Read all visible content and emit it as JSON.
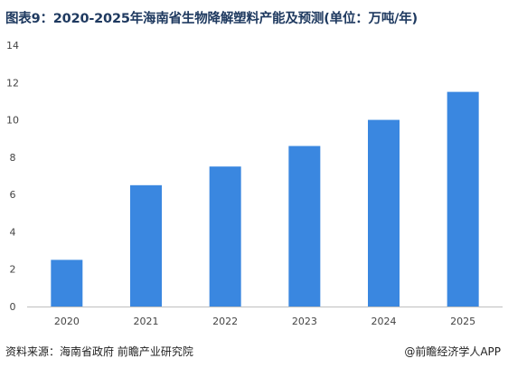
{
  "title": "图表9：2020-2025年海南省生物降解塑料产能及预测(单位：万吨/年)",
  "source": "资料来源：海南省政府 前瞻产业研究院",
  "credit": "@前瞻经济学人APP",
  "chart_data": {
    "type": "bar",
    "categories": [
      "2020",
      "2021",
      "2022",
      "2023",
      "2024",
      "2025"
    ],
    "values": [
      2.5,
      6.5,
      7.5,
      8.6,
      10.0,
      11.5
    ],
    "ylim": [
      0,
      14
    ],
    "yticks": [
      0,
      2,
      4,
      6,
      8,
      10,
      12,
      14
    ],
    "bar_color": "#3a87e0",
    "grid": false
  }
}
